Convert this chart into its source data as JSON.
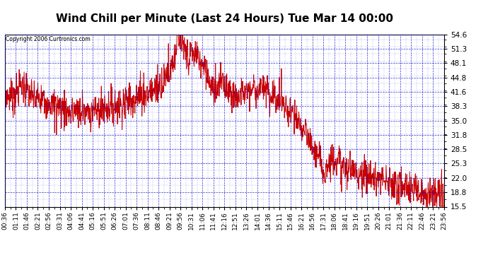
{
  "title": "Wind Chill per Minute (Last 24 Hours) Tue Mar 14 00:00",
  "copyright": "Copyright 2006 Curtronics.com",
  "yticks": [
    15.5,
    18.8,
    22.0,
    25.3,
    28.5,
    31.8,
    35.0,
    38.3,
    41.6,
    44.8,
    48.1,
    51.3,
    54.6
  ],
  "ymin": 15.5,
  "ymax": 54.6,
  "line_color": "#cc0000",
  "bg_color": "#ffffff",
  "grid_color": "#0000cc",
  "title_fontsize": 11,
  "xlabel_fontsize": 6.5,
  "ylabel_fontsize": 7.5,
  "xtick_labels": [
    "00:36",
    "01:11",
    "01:46",
    "02:21",
    "02:56",
    "03:31",
    "04:06",
    "04:41",
    "05:16",
    "05:51",
    "06:26",
    "07:01",
    "07:36",
    "08:11",
    "08:46",
    "09:21",
    "09:56",
    "10:31",
    "11:06",
    "11:41",
    "12:16",
    "12:51",
    "13:26",
    "14:01",
    "14:36",
    "15:11",
    "15:46",
    "16:21",
    "16:56",
    "17:31",
    "18:06",
    "18:41",
    "19:16",
    "19:51",
    "20:26",
    "21:01",
    "21:36",
    "22:11",
    "22:46",
    "23:21",
    "23:56"
  ]
}
